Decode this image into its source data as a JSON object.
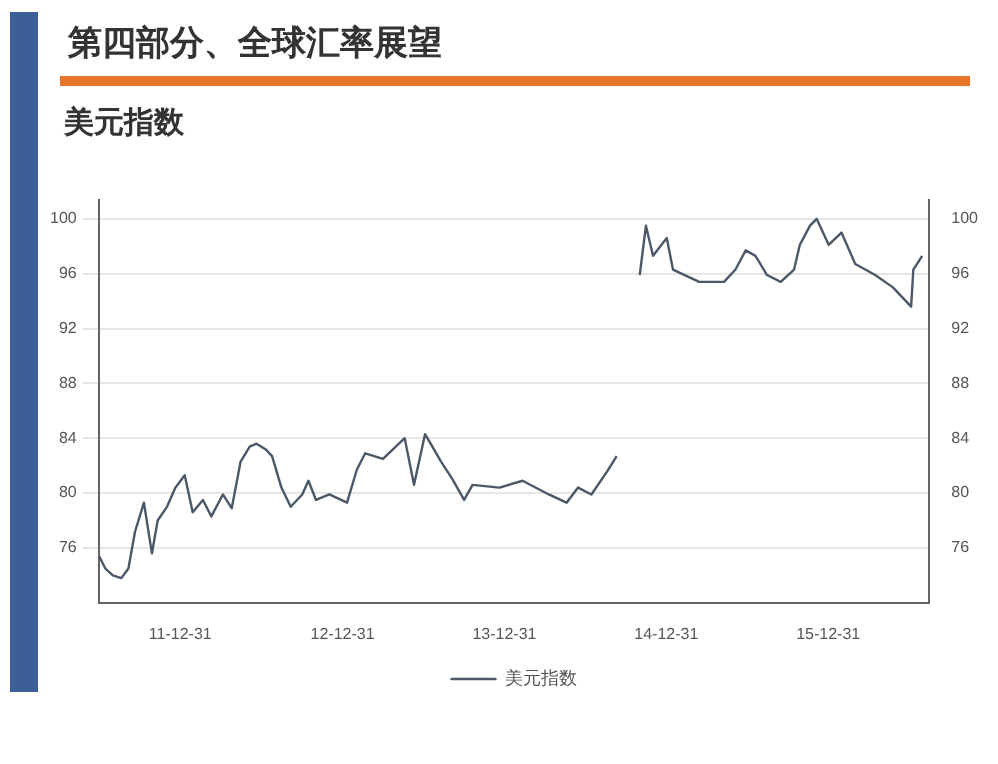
{
  "chart_data": {
    "type": "line",
    "title": "第四部分、全球汇率展望",
    "subtitle": "美元指数",
    "xlim": [
      "2011-06-30",
      "2016-08-15"
    ],
    "xticks": [
      {
        "value": "2011-12-31",
        "label": "11-12-31"
      },
      {
        "value": "2012-12-31",
        "label": "12-12-31"
      },
      {
        "value": "2013-12-31",
        "label": "13-12-31"
      },
      {
        "value": "2014-12-31",
        "label": "14-12-31"
      },
      {
        "value": "2015-12-31",
        "label": "15-12-31"
      }
    ],
    "ylim": [
      72,
      101.4
    ],
    "yticks": [
      76,
      80,
      84,
      88,
      92,
      96,
      100
    ],
    "y2lim": [
      72,
      101.4
    ],
    "y2ticks": [
      76,
      80,
      84,
      88,
      92,
      96,
      100
    ],
    "grid": "y",
    "legend": "bottom",
    "marker": "none",
    "line_style": "solid",
    "series": [
      {
        "name": "美元指数",
        "color": "#4a5868",
        "x": [
          "2011-07-01",
          "2011-07-15",
          "2011-08-01",
          "2011-08-20",
          "2011-09-05",
          "2011-09-20",
          "2011-10-10",
          "2011-10-28",
          "2011-11-10",
          "2011-12-01",
          "2011-12-20",
          "2012-01-10",
          "2012-01-28",
          "2012-02-20",
          "2012-03-10",
          "2012-04-05",
          "2012-04-25",
          "2012-05-15",
          "2012-06-05",
          "2012-06-20",
          "2012-07-10",
          "2012-07-25",
          "2012-08-15",
          "2012-09-05",
          "2012-10-01",
          "2012-10-15",
          "2012-11-01",
          "2012-12-01",
          "2013-01-10",
          "2013-02-01",
          "2013-02-20",
          "2013-04-01",
          "2013-05-20",
          "2013-06-10",
          "2013-07-05",
          "2013-08-10",
          "2013-09-05",
          "2013-10-01",
          "2013-10-20",
          "2013-12-20",
          "2014-02-10",
          "2014-04-10",
          "2014-05-20",
          "2014-06-15",
          "2014-07-15",
          "2014-08-20",
          "2014-09-10",
          "2014-10-10",
          "2014-11-01",
          "2014-11-15",
          "2014-12-01",
          "2015-01-01",
          "2015-01-15",
          "2015-03-15",
          "2015-05-10",
          "2015-06-05",
          "2015-06-28",
          "2015-07-20",
          "2015-08-15",
          "2015-09-15",
          "2015-10-15",
          "2015-10-28",
          "2015-11-20",
          "2015-12-05",
          "2016-01-01",
          "2016-01-30",
          "2016-03-01",
          "2016-04-15",
          "2016-05-25",
          "2016-07-05",
          "2016-07-10",
          "2016-07-30"
        ],
        "values": [
          75.4,
          74.5,
          74.0,
          73.8,
          74.5,
          77.2,
          79.3,
          75.6,
          78.0,
          79.0,
          80.4,
          81.3,
          78.6,
          79.5,
          78.3,
          79.9,
          78.9,
          82.3,
          83.4,
          83.6,
          83.2,
          82.7,
          80.4,
          79.0,
          79.9,
          80.9,
          79.5,
          79.9,
          79.3,
          81.7,
          82.9,
          82.5,
          84.0,
          80.6,
          84.3,
          82.3,
          81.0,
          79.5,
          80.6,
          80.4,
          80.9,
          79.9,
          79.3,
          80.4,
          79.9,
          81.6,
          82.7,
          null,
          95.9,
          99.5,
          97.3,
          98.6,
          96.3,
          95.4,
          95.4,
          96.3,
          97.7,
          97.3,
          95.9,
          95.4,
          96.3,
          98.1,
          99.5,
          100.0,
          98.1,
          99.0,
          96.7,
          95.9,
          95.0,
          93.6,
          96.3,
          97.3
        ]
      }
    ]
  }
}
